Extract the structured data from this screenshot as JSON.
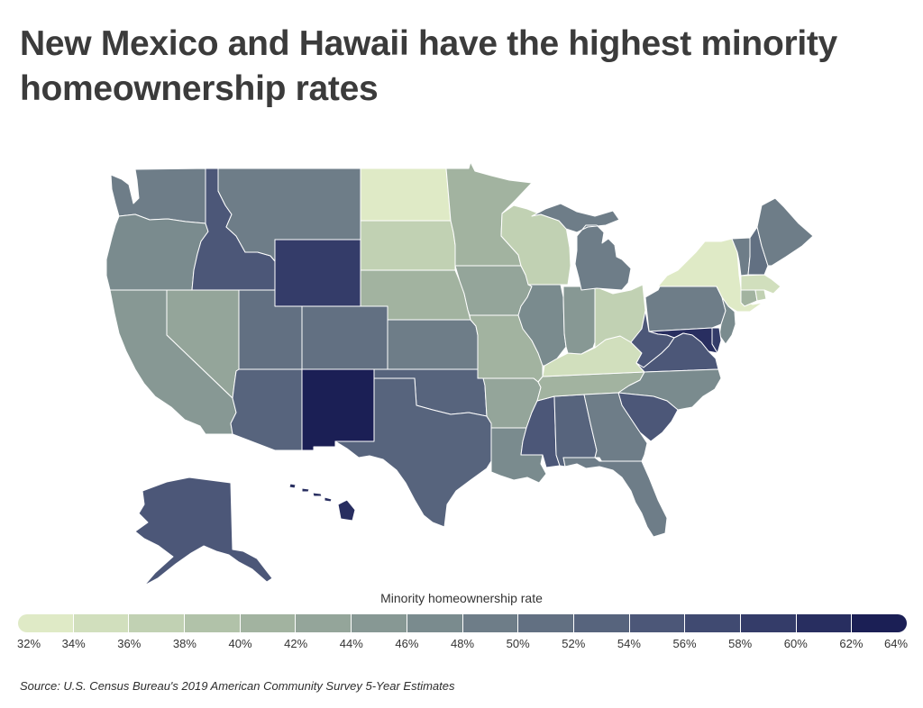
{
  "title": "New Mexico and Hawaii have the highest minority homeownership rates",
  "legend": {
    "title": "Minority homeownership rate",
    "min": 32,
    "max": 64,
    "step": 2,
    "tick_labels": [
      "32%",
      "34%",
      "36%",
      "38%",
      "40%",
      "42%",
      "44%",
      "46%",
      "48%",
      "50%",
      "52%",
      "54%",
      "56%",
      "58%",
      "60%",
      "62%",
      "64%"
    ],
    "colors": [
      "#dfeac6",
      "#d1dfbd",
      "#c1d1b3",
      "#b1c2a9",
      "#a2b3a0",
      "#94a59a",
      "#879894",
      "#7a8b8e",
      "#6e7d88",
      "#627082",
      "#57647d",
      "#4c5778",
      "#404a71",
      "#343c69",
      "#282e60",
      "#1b1f55"
    ]
  },
  "map": {
    "state_rates": {
      "WA": 49,
      "OR": 47,
      "CA": 45,
      "NV": 43,
      "ID": 55,
      "MT": 49,
      "WY": 59,
      "UT": 51,
      "CO": 51,
      "AZ": 53,
      "NM": 63,
      "ND": 33,
      "SD": 37,
      "NE": 41,
      "KS": 49,
      "OK": 52,
      "TX": 53,
      "MN": 41,
      "IA": 43,
      "MO": 41,
      "AR": 43,
      "LA": 47,
      "WI": 36,
      "IL": 47,
      "MI": 49,
      "IN": 45,
      "OH": 37,
      "KY": 35,
      "TN": 41,
      "MS": 55,
      "AL": 52,
      "GA": 48,
      "FL": 49,
      "SC": 55,
      "NC": 47,
      "VA": 54,
      "WV": 54,
      "MD": 60,
      "DE": 59,
      "PA": 48,
      "NJ": 47,
      "NY": 33,
      "CT": 41,
      "RI": 37,
      "MA": 35,
      "VT": 49,
      "NH": 51,
      "ME": 49,
      "AK": 55,
      "HI": 60
    }
  },
  "source": "Source: U.S. Census Bureau's 2019 American Community Survey 5-Year Estimates"
}
